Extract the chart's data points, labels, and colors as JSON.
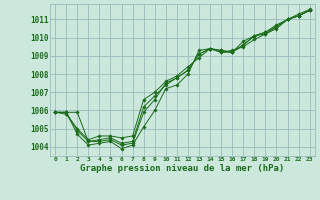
{
  "background_color": "#cce8dd",
  "grid_color": "#99bbbb",
  "line_color": "#1a6b1a",
  "title": "Graphe pression niveau de la mer (hPa)",
  "ylabel_labels": [
    1004,
    1005,
    1006,
    1007,
    1008,
    1009,
    1010,
    1011
  ],
  "xlim": [
    -0.5,
    23.5
  ],
  "ylim": [
    1003.5,
    1011.85
  ],
  "series": [
    [
      1005.9,
      1005.9,
      1004.7,
      1004.1,
      1004.2,
      1004.3,
      1003.9,
      1004.1,
      1005.1,
      1006.0,
      1007.2,
      1007.4,
      1008.0,
      1009.3,
      1009.4,
      1009.2,
      1009.2,
      1009.8,
      1010.1,
      1010.2,
      1010.5,
      1011.0,
      1011.3,
      1011.55
    ],
    [
      1005.9,
      1005.9,
      1005.9,
      1004.3,
      1004.3,
      1004.4,
      1004.1,
      1004.2,
      1005.9,
      1006.6,
      1007.5,
      1007.8,
      1008.2,
      1009.1,
      1009.4,
      1009.2,
      1009.3,
      1009.5,
      1009.9,
      1010.2,
      1010.6,
      1011.0,
      1011.2,
      1011.5
    ],
    [
      1005.9,
      1005.9,
      1004.9,
      1004.3,
      1004.4,
      1004.5,
      1004.2,
      1004.3,
      1006.2,
      1006.8,
      1007.4,
      1007.8,
      1008.2,
      1009.1,
      1009.4,
      1009.3,
      1009.2,
      1009.6,
      1010.1,
      1010.3,
      1010.6,
      1011.0,
      1011.2,
      1011.5
    ],
    [
      1005.9,
      1005.8,
      1005.0,
      1004.4,
      1004.6,
      1004.6,
      1004.5,
      1004.6,
      1006.6,
      1007.0,
      1007.6,
      1007.9,
      1008.4,
      1008.9,
      1009.4,
      1009.3,
      1009.2,
      1009.6,
      1010.1,
      1010.3,
      1010.7,
      1011.0,
      1011.2,
      1011.5
    ]
  ]
}
